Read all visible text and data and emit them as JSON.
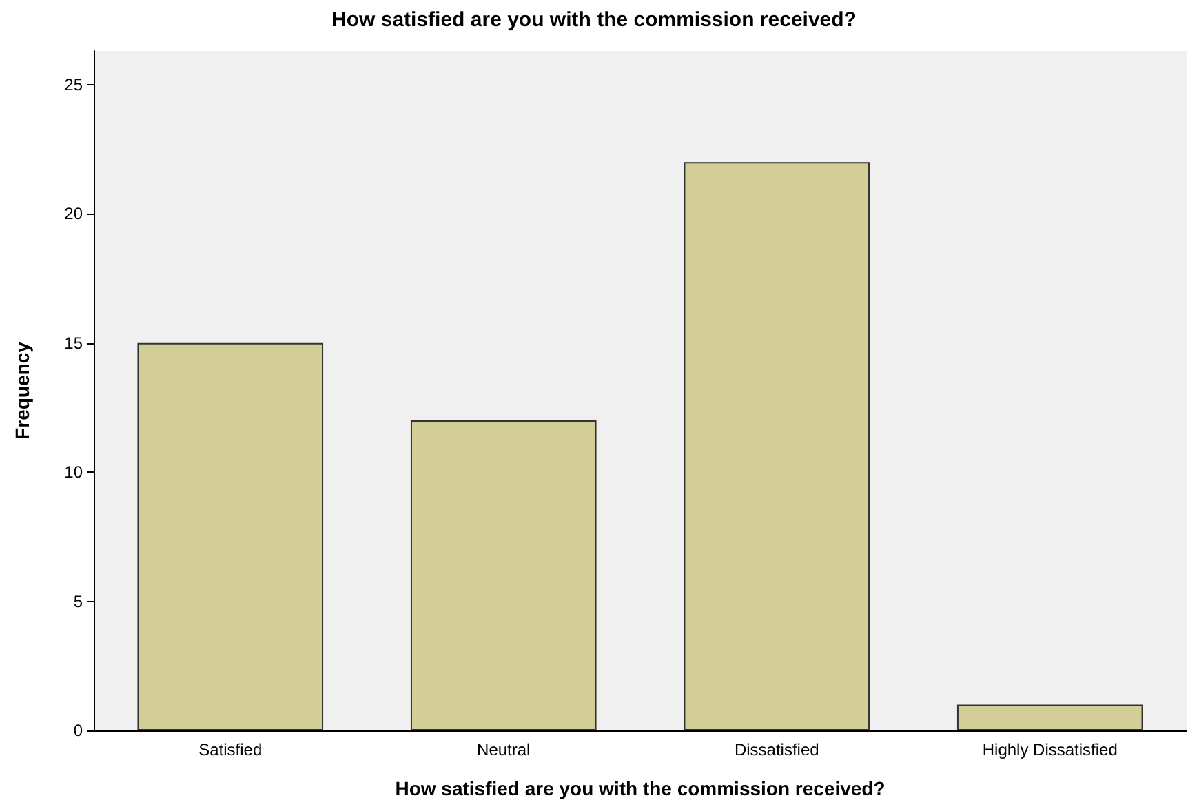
{
  "chart_data": {
    "type": "bar",
    "title": "How satisfied are you with the commission received?",
    "xlabel": "How satisfied are you with the commission received?",
    "ylabel": "Frequency",
    "categories": [
      "Satisfied",
      "Neutral",
      "Dissatisfied",
      "Highly Dissatisfied"
    ],
    "values": [
      15,
      12,
      22,
      1
    ],
    "color": "#d3ce97",
    "ylim": [
      0,
      26.3
    ],
    "yticks": [
      0,
      5,
      10,
      15,
      20,
      25
    ],
    "grid": false
  }
}
